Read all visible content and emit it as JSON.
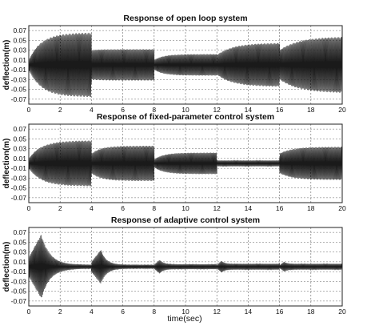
{
  "chart_data": [
    {
      "type": "line",
      "title": "Response of open loop system",
      "ylabel": "deflection(m)",
      "xlabel": "",
      "xlim": [
        0,
        20
      ],
      "ylim": [
        -0.08,
        0.08
      ],
      "grid": true,
      "xticks": [
        0,
        2,
        4,
        6,
        8,
        10,
        12,
        14,
        16,
        18,
        20
      ],
      "yticks": [
        "0.07",
        "0.05",
        "0.03",
        "0.01",
        "-0.01",
        "-0.03",
        "-0.05",
        "-0.07"
      ],
      "series": [
        {
          "segments": [
            {
              "t0": 0,
              "t1": 4,
              "a0": 0.01,
              "tau": 0.8,
              "af": 0.066,
              "freq": 4.5
            },
            {
              "t0": 4,
              "t1": 8,
              "a0": 0.03,
              "tau": 0.5,
              "af": 0.032,
              "freq": 4.5
            },
            {
              "t0": 8,
              "t1": 12,
              "a0": 0.01,
              "tau": 0.6,
              "af": 0.022,
              "freq": 4.5
            },
            {
              "t0": 12,
              "t1": 16,
              "a0": 0.02,
              "tau": 1.0,
              "af": 0.045,
              "freq": 4.5
            },
            {
              "t0": 16,
              "t1": 20,
              "a0": 0.03,
              "tau": 1.2,
              "af": 0.058,
              "freq": 4.5
            }
          ]
        }
      ]
    },
    {
      "type": "line",
      "title": "Response of fixed-parameter control system",
      "ylabel": "deflection(m)",
      "xlabel": "",
      "xlim": [
        0,
        20
      ],
      "ylim": [
        -0.08,
        0.08
      ],
      "grid": true,
      "xticks": [
        0,
        2,
        4,
        6,
        8,
        10,
        12,
        14,
        16,
        18,
        20
      ],
      "yticks": [
        "0.07",
        "0.05",
        "0.03",
        "0.01",
        "-0.01",
        "-0.03",
        "-0.05",
        "-0.07"
      ],
      "series": [
        {
          "segments": [
            {
              "t0": 0,
              "t1": 4,
              "a0": 0.01,
              "tau": 0.8,
              "af": 0.047,
              "freq": 4.5
            },
            {
              "t0": 4,
              "t1": 8,
              "a0": 0.02,
              "tau": 0.6,
              "af": 0.036,
              "freq": 4.5
            },
            {
              "t0": 8,
              "t1": 12,
              "a0": 0.008,
              "tau": 0.6,
              "af": 0.022,
              "freq": 4.5
            },
            {
              "t0": 12,
              "t1": 16,
              "a0": 0.006,
              "tau": 0.6,
              "af": 0.006,
              "freq": 4.5
            },
            {
              "t0": 16,
              "t1": 20,
              "a0": 0.02,
              "tau": 0.8,
              "af": 0.034,
              "freq": 4.5
            }
          ]
        }
      ]
    },
    {
      "type": "line",
      "title": "Response of adaptive control system",
      "ylabel": "deflection(m)",
      "xlabel": "time(sec)",
      "xlim": [
        0,
        20
      ],
      "ylim": [
        -0.08,
        0.08
      ],
      "grid": true,
      "xticks": [
        0,
        2,
        4,
        6,
        8,
        10,
        12,
        14,
        16,
        18,
        20
      ],
      "yticks": [
        "0.07",
        "0.05",
        "0.03",
        "0.01",
        "-0.01",
        "-0.03",
        "-0.05",
        "-0.07"
      ],
      "series": [
        {
          "segments": [
            {
              "t0": 0,
              "t1": 4,
              "a0": 0.0,
              "tau": 0.0,
              "af": 0.004,
              "freq": 4.5,
              "peak": 0.066,
              "tpk": 0.8,
              "decay": 0.55
            },
            {
              "t0": 4,
              "t1": 8,
              "a0": 0.0,
              "tau": 0.0,
              "af": 0.004,
              "freq": 4.5,
              "peak": 0.035,
              "tpk": 0.6,
              "decay": 0.35
            },
            {
              "t0": 8,
              "t1": 12,
              "a0": 0.0,
              "tau": 0.0,
              "af": 0.005,
              "freq": 4.5,
              "peak": 0.014,
              "tpk": 0.35,
              "decay": 0.25
            },
            {
              "t0": 12,
              "t1": 16,
              "a0": 0.0,
              "tau": 0.0,
              "af": 0.006,
              "freq": 4.5,
              "peak": 0.012,
              "tpk": 0.3,
              "decay": 0.2
            },
            {
              "t0": 16,
              "t1": 20,
              "a0": 0.0,
              "tau": 0.0,
              "af": 0.006,
              "freq": 4.5,
              "peak": 0.01,
              "tpk": 0.3,
              "decay": 0.2
            }
          ]
        }
      ]
    }
  ]
}
